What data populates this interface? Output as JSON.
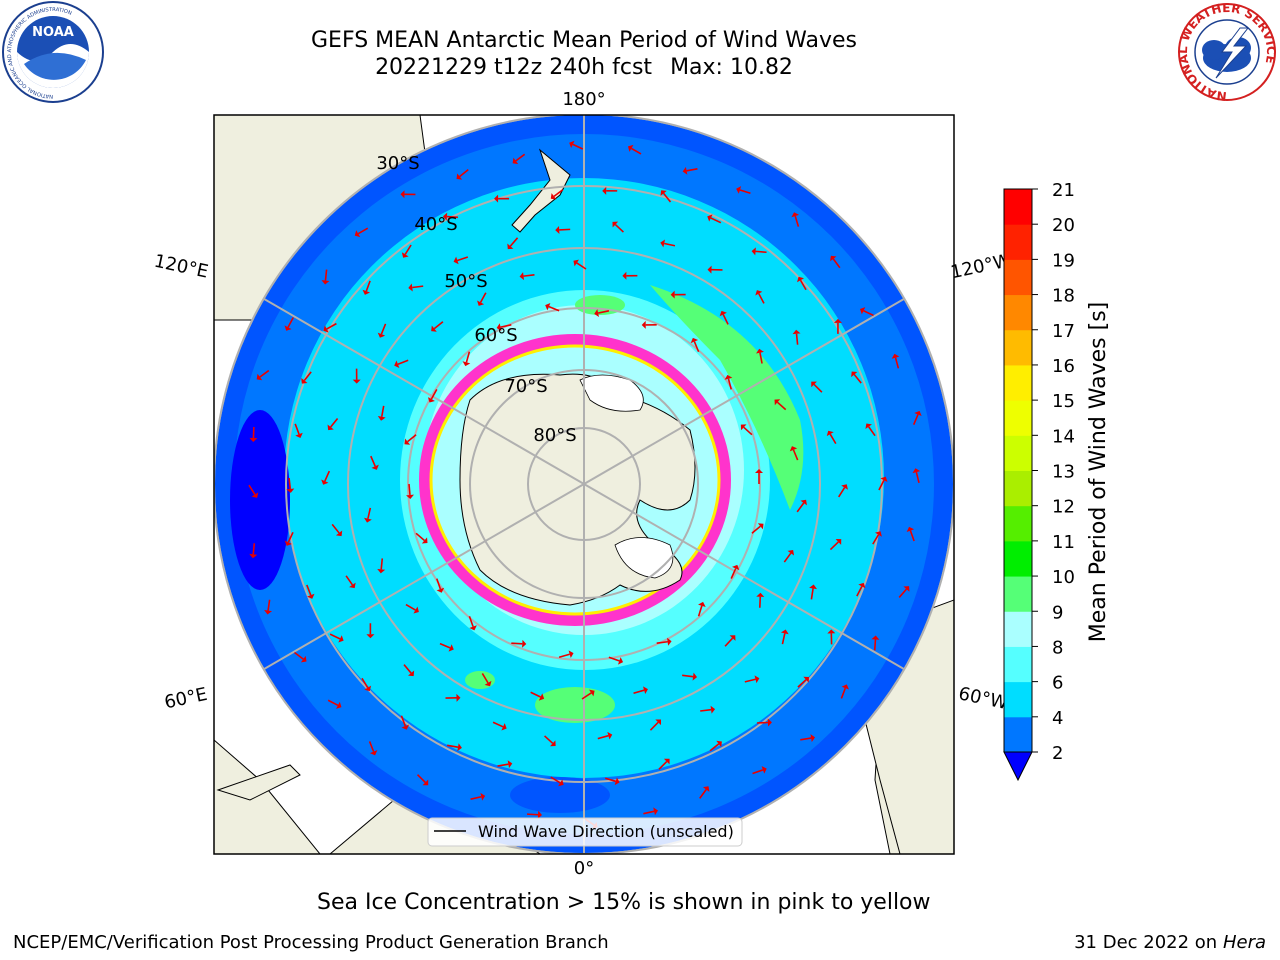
{
  "header": {
    "title_line1": "GEFS MEAN Antarctic Mean Period of Wind Waves",
    "title_date": "20221229 t12z 240h fcst",
    "title_max": "Max: 10.82"
  },
  "logos": {
    "left": {
      "icon": "noaa-logo-icon",
      "text": "NOAA",
      "ring_text": "NATIONAL OCEANIC AND ATMOSPHERIC ADMINISTRATION",
      "ring_bottom": "U.S. DEPARTMENT OF COMMERCE"
    },
    "right": {
      "icon": "nws-logo-icon",
      "ring_text": "NATIONAL WEATHER SERVICE"
    }
  },
  "map": {
    "projection": "south-polar-stereographic",
    "longitude_labels": [
      "180°",
      "120°E",
      "120°W",
      "60°E",
      "60°W",
      "0°"
    ],
    "latitude_labels": [
      "30°S",
      "40°S",
      "50°S",
      "60°S",
      "70°S",
      "80°S"
    ],
    "vectors": "red arrows showing wind wave direction",
    "colors": {
      "land": "#efefdf",
      "ocean_deep": "#0055ff",
      "ocean_mid": "#00ddff",
      "ice_pink": "#ff33cc",
      "ice_yellow": "#ffee00"
    }
  },
  "legend": {
    "label": "Wind Wave Direction (unscaled)"
  },
  "colorbar": {
    "label": "Mean Period of Wind Waves [s]",
    "ticks": [
      "2",
      "4",
      "6",
      "8",
      "9",
      "10",
      "11",
      "12",
      "13",
      "14",
      "15",
      "16",
      "17",
      "18",
      "19",
      "20",
      "21"
    ],
    "colors": [
      "#0000ff",
      "#0077ff",
      "#00ddff",
      "#55ffff",
      "#aaffff",
      "#55ff77",
      "#00ee00",
      "#55ee00",
      "#aaee00",
      "#ccff00",
      "#eeff00",
      "#ffee00",
      "#ffbb00",
      "#ff8800",
      "#ff5500",
      "#ff2200",
      "#ff0000"
    ]
  },
  "footer": {
    "ice_note": "Sea Ice Concentration > 15% is shown in pink to yellow",
    "left": "NCEP/EMC/Verification Post Processing Product Generation Branch",
    "right_date": "31 Dec 2022 on",
    "right_system": "Hera"
  }
}
